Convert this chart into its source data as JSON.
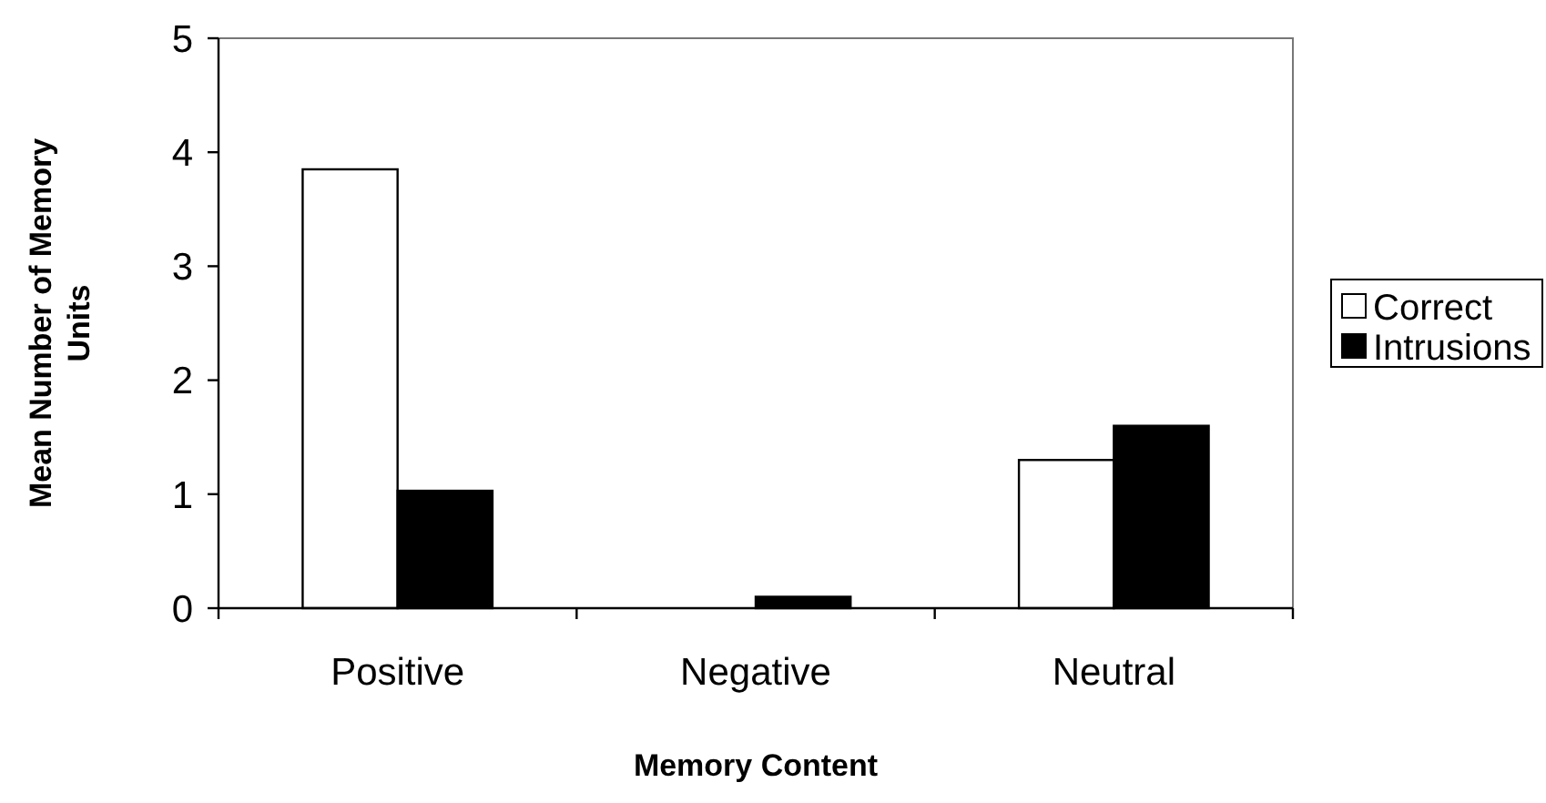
{
  "chart_data": {
    "type": "bar",
    "xlabel": "Memory Content",
    "ylabel": "Mean Number of Memory Units",
    "categories": [
      "Positive",
      "Negative",
      "Neutral"
    ],
    "series": [
      {
        "name": "Correct",
        "color": "#ffffff",
        "values": [
          3.85,
          0,
          1.3
        ]
      },
      {
        "name": "Intrusions",
        "color": "#000000",
        "values": [
          1.03,
          0.1,
          1.6
        ]
      }
    ],
    "ylim": [
      0,
      5
    ],
    "yticks": [
      0,
      1,
      2,
      3,
      4,
      5
    ],
    "grid": false,
    "legend": "right"
  }
}
